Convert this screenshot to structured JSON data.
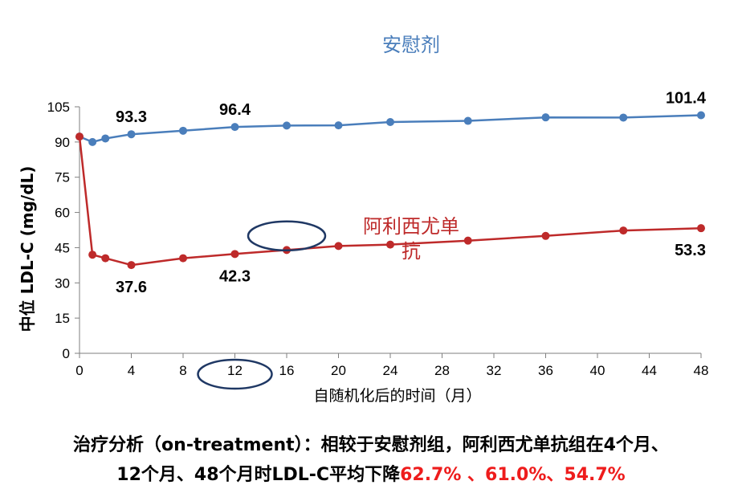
{
  "chart_data": {
    "type": "line",
    "xlabel": "自随机化后的时间（月）",
    "ylabel": "中位 LDL-C (mg/dL)",
    "xlim": [
      0,
      48
    ],
    "ylim": [
      0,
      105
    ],
    "xticks": [
      0,
      4,
      8,
      12,
      16,
      20,
      24,
      28,
      32,
      36,
      40,
      44,
      48
    ],
    "yticks": [
      0,
      15,
      30,
      45,
      60,
      75,
      90,
      105
    ],
    "grid": false,
    "series": [
      {
        "name": "安慰剂",
        "color": "#4a7ebb",
        "label_color": "#4a7ebb",
        "x": [
          0,
          1,
          2,
          4,
          8,
          12,
          16,
          20,
          24,
          30,
          36,
          42,
          48
        ],
        "values": [
          92.3,
          90.0,
          91.5,
          93.3,
          94.8,
          96.4,
          97.0,
          97.1,
          98.5,
          99.0,
          100.5,
          100.4,
          101.4
        ]
      },
      {
        "name": "阿利西尤单抗",
        "name_lines": [
          "阿利西尤单",
          "抗"
        ],
        "color": "#be2a2a",
        "label_color": "#be2a2a",
        "x": [
          0,
          1,
          2,
          4,
          8,
          12,
          16,
          20,
          24,
          30,
          36,
          42,
          48
        ],
        "values": [
          92.3,
          42.0,
          40.5,
          37.6,
          40.5,
          42.3,
          44.0,
          45.7,
          46.3,
          48.0,
          50.0,
          52.3,
          53.3
        ]
      }
    ],
    "data_labels": [
      {
        "series": 0,
        "x": 4,
        "text": "93.3",
        "pos": "above"
      },
      {
        "series": 0,
        "x": 12,
        "text": "96.4",
        "pos": "above"
      },
      {
        "series": 0,
        "x": 48,
        "text": "101.4",
        "pos": "above"
      },
      {
        "series": 1,
        "x": 4,
        "text": "37.6",
        "pos": "below"
      },
      {
        "series": 1,
        "x": 12,
        "text": "42.3",
        "pos": "below"
      },
      {
        "series": 1,
        "x": 48,
        "text": "53.3",
        "pos": "below"
      }
    ],
    "annotations": [
      {
        "shape": "ellipse",
        "color": "#1f3864",
        "at_x": 16,
        "at_y": 50,
        "note": "highlight near alirocumab line at 16 months"
      },
      {
        "shape": "ellipse",
        "color": "#1f3864",
        "around_tick": 12,
        "note": "highlight of x-axis tick 12"
      }
    ]
  },
  "caption": {
    "line1": "治疗分析（on-treatment）：相较于安慰剂组，阿利西尤单抗组在4个月、",
    "line2_prefix": "12个月、48个月时LDL-C平均下降",
    "line2_values": "62.7% 、61.0%、54.7%"
  }
}
